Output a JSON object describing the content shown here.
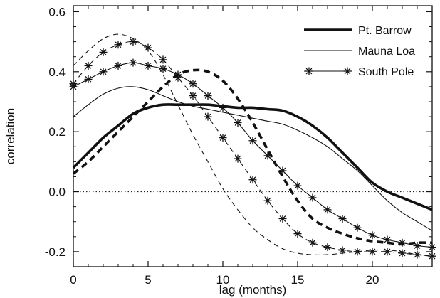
{
  "chart_data": {
    "type": "line",
    "xlabel": "lag (months)",
    "ylabel": "correlation",
    "xlim": [
      0,
      24
    ],
    "ylim": [
      -0.25,
      0.62
    ],
    "xticks": [
      "0",
      "5",
      "10",
      "15",
      "20"
    ],
    "yticks": [
      "-0.2",
      "0.0",
      "0.2",
      "0.4",
      "0.6"
    ],
    "zero_line": true,
    "legend_position": "top-right",
    "legend": [
      {
        "label": "Pt. Barrow",
        "style": "thick-solid"
      },
      {
        "label": "Mauna Loa",
        "style": "thin-solid"
      },
      {
        "label": "South Pole",
        "style": "thin-solid-star"
      }
    ],
    "series": [
      {
        "name": "Pt. Barrow",
        "style": "thick-solid",
        "x": [
          0,
          1,
          2,
          3,
          4,
          5,
          6,
          7,
          8,
          9,
          10,
          11,
          12,
          13,
          14,
          15,
          16,
          17,
          18,
          19,
          20,
          21,
          22,
          23,
          24
        ],
        "y": [
          0.08,
          0.13,
          0.18,
          0.22,
          0.26,
          0.28,
          0.29,
          0.29,
          0.29,
          0.29,
          0.285,
          0.28,
          0.28,
          0.275,
          0.27,
          0.25,
          0.22,
          0.18,
          0.13,
          0.08,
          0.03,
          0.0,
          -0.02,
          -0.04,
          -0.06
        ]
      },
      {
        "name": "Pt. Barrow (dashed)",
        "style": "thick-dashed",
        "x": [
          0,
          1,
          2,
          3,
          4,
          5,
          6,
          7,
          8,
          9,
          10,
          11,
          12,
          13,
          14,
          15,
          16,
          17,
          18,
          19,
          20,
          21,
          22,
          23,
          24
        ],
        "y": [
          0.06,
          0.1,
          0.15,
          0.2,
          0.25,
          0.3,
          0.35,
          0.39,
          0.405,
          0.4,
          0.37,
          0.31,
          0.23,
          0.14,
          0.05,
          -0.03,
          -0.09,
          -0.12,
          -0.14,
          -0.155,
          -0.165,
          -0.17,
          -0.175,
          -0.17,
          -0.17
        ]
      },
      {
        "name": "Mauna Loa",
        "style": "thin-solid",
        "x": [
          0,
          1,
          2,
          3,
          4,
          5,
          6,
          7,
          8,
          9,
          10,
          11,
          12,
          13,
          14,
          15,
          16,
          17,
          18,
          19,
          20,
          21,
          22,
          23,
          24
        ],
        "y": [
          0.25,
          0.29,
          0.325,
          0.345,
          0.35,
          0.34,
          0.32,
          0.3,
          0.285,
          0.275,
          0.265,
          0.255,
          0.245,
          0.235,
          0.225,
          0.205,
          0.18,
          0.15,
          0.11,
          0.07,
          0.02,
          -0.03,
          -0.07,
          -0.1,
          -0.13
        ]
      },
      {
        "name": "Mauna Loa (dashed)",
        "style": "thin-dashed",
        "x": [
          0,
          1,
          2,
          3,
          4,
          5,
          6,
          7,
          8,
          9,
          10,
          11,
          12,
          13,
          14,
          15,
          16,
          17,
          18,
          19,
          20,
          21,
          22,
          23,
          24
        ],
        "y": [
          0.42,
          0.47,
          0.51,
          0.525,
          0.51,
          0.47,
          0.39,
          0.29,
          0.19,
          0.1,
          0.01,
          -0.06,
          -0.12,
          -0.16,
          -0.19,
          -0.205,
          -0.21,
          -0.21,
          -0.205,
          -0.2,
          -0.195,
          -0.195,
          -0.2,
          -0.21,
          -0.215
        ]
      },
      {
        "name": "South Pole",
        "style": "thin-solid-star",
        "x": [
          0,
          1,
          2,
          3,
          4,
          5,
          6,
          7,
          8,
          9,
          10,
          11,
          12,
          13,
          14,
          15,
          16,
          17,
          18,
          19,
          20,
          21,
          22,
          23,
          24
        ],
        "y": [
          0.35,
          0.375,
          0.4,
          0.42,
          0.43,
          0.42,
          0.41,
          0.39,
          0.36,
          0.32,
          0.28,
          0.23,
          0.17,
          0.12,
          0.07,
          0.02,
          -0.02,
          -0.06,
          -0.09,
          -0.12,
          -0.145,
          -0.16,
          -0.17,
          -0.18,
          -0.185
        ]
      },
      {
        "name": "South Pole (dashed)",
        "style": "thin-dashed-star",
        "x": [
          0,
          1,
          2,
          3,
          4,
          5,
          6,
          7,
          8,
          9,
          10,
          11,
          12,
          13,
          14,
          15,
          16,
          17,
          18,
          19,
          20,
          21,
          22,
          23,
          24
        ],
        "y": [
          0.36,
          0.42,
          0.465,
          0.49,
          0.5,
          0.48,
          0.44,
          0.38,
          0.32,
          0.25,
          0.18,
          0.11,
          0.04,
          -0.03,
          -0.09,
          -0.14,
          -0.17,
          -0.185,
          -0.195,
          -0.2,
          -0.2,
          -0.2,
          -0.205,
          -0.21,
          -0.215
        ]
      }
    ]
  }
}
